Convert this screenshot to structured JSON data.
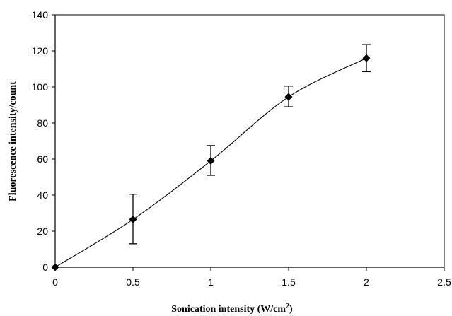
{
  "chart_data": {
    "type": "scatter",
    "xlabel": "Sonication intensity (W/cm",
    "xlabel_sup": "2",
    "xlabel_end": ")",
    "ylabel": "Fluorescence intensity/count",
    "xlim": [
      0,
      2.5
    ],
    "ylim": [
      0,
      140
    ],
    "x_ticks": [
      "0",
      "0.5",
      "1",
      "1.5",
      "2",
      "2.5"
    ],
    "y_ticks": [
      "0",
      "20",
      "40",
      "60",
      "80",
      "100",
      "120",
      "140"
    ],
    "grid": false,
    "legend": "none",
    "smooth_line": true,
    "series": [
      {
        "x": [
          0,
          0.5,
          1,
          1.5,
          2
        ],
        "y": [
          0,
          26.5,
          59,
          94.5,
          116
        ],
        "error_low": [
          0,
          13.5,
          8,
          5.5,
          7.5
        ],
        "error_high": [
          0,
          14,
          8.5,
          6,
          7.5
        ],
        "marker": "diamond",
        "color": "#000000"
      }
    ]
  }
}
